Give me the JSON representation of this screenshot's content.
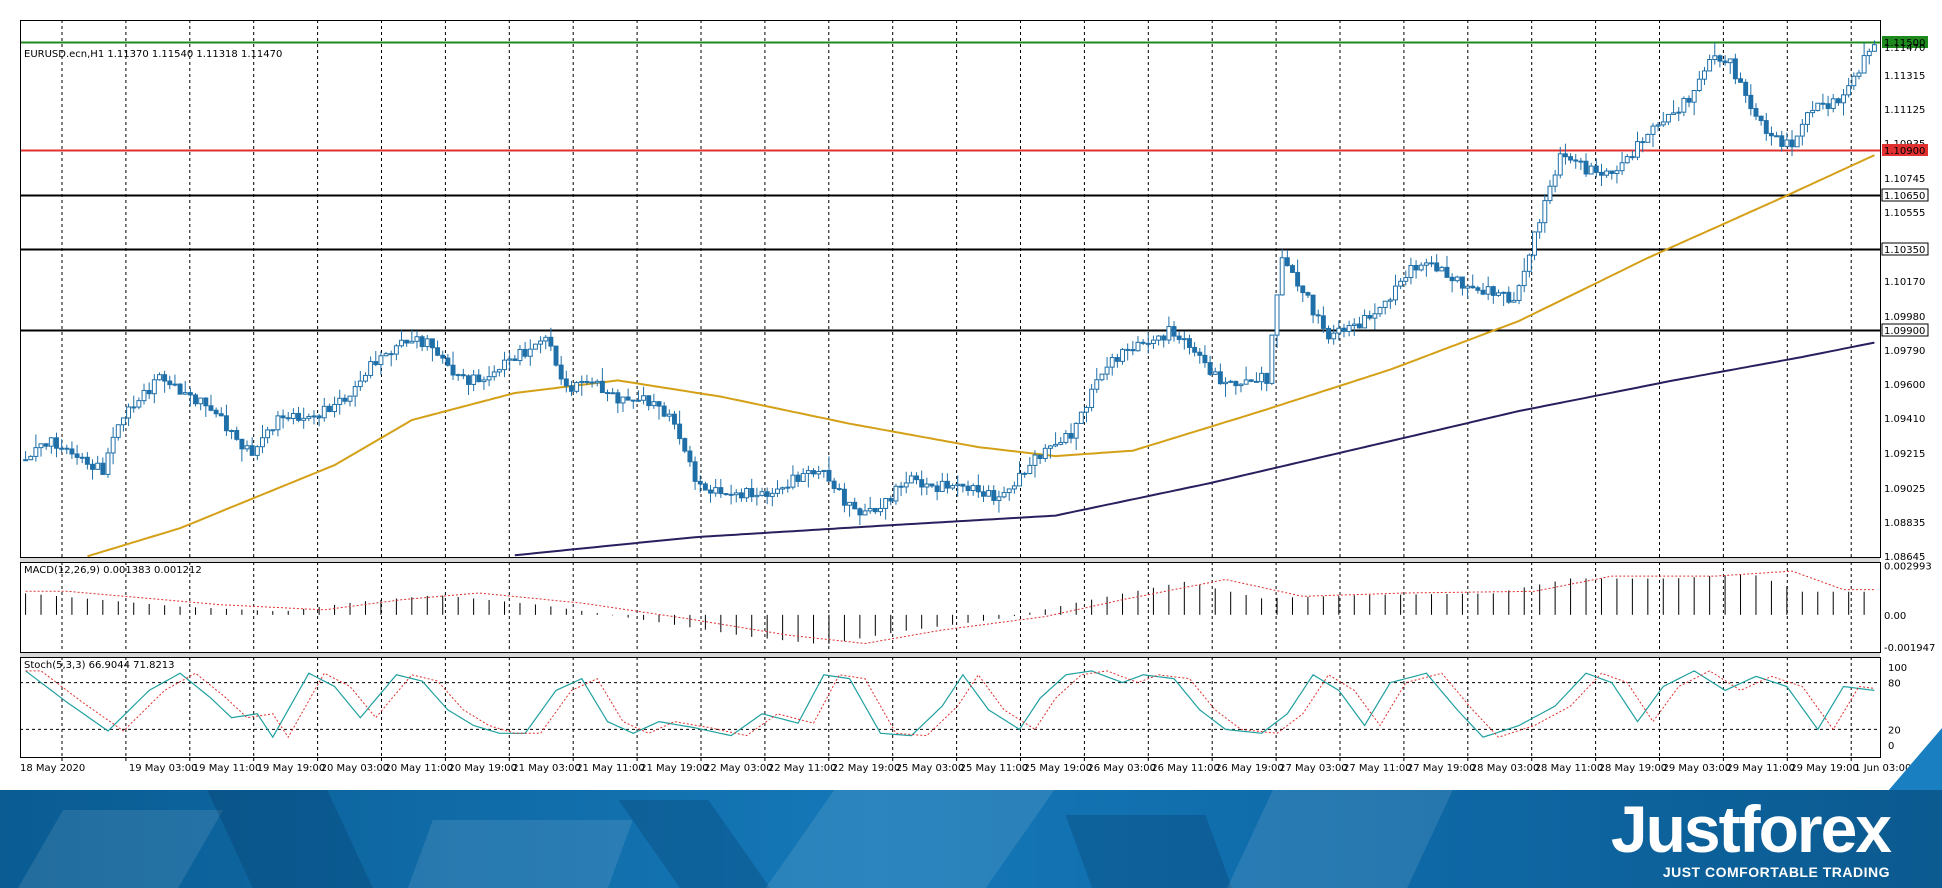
{
  "chart_data": {
    "type": "candlestick",
    "symbol_label": "EURUSD.ecn,H1",
    "ohlc_label": "1.11370 1.11540 1.11318 1.11470",
    "price_ticks": [
      "1.11500",
      "1.11470",
      "1.11315",
      "1.11125",
      "1.10935",
      "1.10900",
      "1.10745",
      "1.10650",
      "1.10555",
      "1.10350",
      "1.10170",
      "1.09980",
      "1.09900",
      "1.09790",
      "1.09600",
      "1.09410",
      "1.09215",
      "1.09025",
      "1.08835",
      "1.08645"
    ],
    "ylim": [
      1.0864,
      1.1162
    ],
    "x_labels": [
      "18 May 2020",
      "19 May 03:00",
      "19 May 11:00",
      "19 May 19:00",
      "20 May 03:00",
      "20 May 11:00",
      "20 May 19:00",
      "21 May 03:00",
      "21 May 11:00",
      "21 May 19:00",
      "22 May 03:00",
      "22 May 11:00",
      "22 May 19:00",
      "25 May 03:00",
      "25 May 11:00",
      "25 May 19:00",
      "26 May 03:00",
      "26 May 11:00",
      "26 May 19:00",
      "27 May 03:00",
      "27 May 11:00",
      "27 May 19:00",
      "28 May 03:00",
      "28 May 11:00",
      "28 May 19:00",
      "29 May 03:00",
      "29 May 11:00",
      "29 May 19:00",
      "1 Jun 03:00"
    ],
    "levels": [
      {
        "price": 1.115,
        "label": "1.11500",
        "color": "#1e8a1e"
      },
      {
        "price": 1.109,
        "label": "1.10900",
        "color": "#e03030"
      },
      {
        "price": 1.1065,
        "label": "1.10650",
        "color": "#000000"
      },
      {
        "price": 1.1035,
        "label": "1.10350",
        "color": "#000000"
      },
      {
        "price": 1.099,
        "label": "1.09900",
        "color": "#000000"
      }
    ],
    "keypoints": [
      [
        0,
        1.0918
      ],
      [
        4,
        1.0925
      ],
      [
        10,
        1.0923
      ],
      [
        15,
        1.0912
      ],
      [
        18,
        1.0935
      ],
      [
        23,
        1.0955
      ],
      [
        26,
        1.0968
      ],
      [
        32,
        1.095
      ],
      [
        38,
        1.0942
      ],
      [
        44,
        1.0922
      ],
      [
        50,
        1.094
      ],
      [
        56,
        1.0945
      ],
      [
        63,
        1.095
      ],
      [
        68,
        1.0975
      ],
      [
        73,
        1.0985
      ],
      [
        78,
        1.098
      ],
      [
        83,
        1.0968
      ],
      [
        90,
        1.0962
      ],
      [
        97,
        1.0978
      ],
      [
        101,
        1.099
      ],
      [
        105,
        1.0955
      ],
      [
        110,
        1.096
      ],
      [
        115,
        1.0955
      ],
      [
        120,
        1.095
      ],
      [
        126,
        1.0938
      ],
      [
        131,
        1.0905
      ],
      [
        137,
        1.0895
      ],
      [
        142,
        1.09
      ],
      [
        148,
        1.0905
      ],
      [
        155,
        1.091
      ],
      [
        162,
        1.089
      ],
      [
        166,
        1.0888
      ],
      [
        172,
        1.091
      ],
      [
        176,
        1.0905
      ],
      [
        182,
        1.09
      ],
      [
        189,
        1.09
      ],
      [
        193,
        1.0908
      ],
      [
        197,
        1.0918
      ],
      [
        203,
        1.0935
      ],
      [
        208,
        1.0962
      ],
      [
        213,
        1.0975
      ],
      [
        217,
        1.0985
      ],
      [
        222,
        1.099
      ],
      [
        226,
        1.0978
      ],
      [
        231,
        1.0965
      ],
      [
        236,
        1.0962
      ],
      [
        241,
        1.096
      ],
      [
        244,
        1.103
      ],
      [
        249,
        1.101
      ],
      [
        253,
        1.0985
      ],
      [
        258,
        1.099
      ],
      [
        263,
        1.1005
      ],
      [
        268,
        1.102
      ],
      [
        273,
        1.1025
      ],
      [
        278,
        1.102
      ],
      [
        283,
        1.101
      ],
      [
        289,
        1.1005
      ],
      [
        294,
        1.1055
      ],
      [
        298,
        1.1085
      ],
      [
        303,
        1.1078
      ],
      [
        308,
        1.108
      ],
      [
        313,
        1.109
      ],
      [
        318,
        1.1105
      ],
      [
        324,
        1.1125
      ],
      [
        327,
        1.114
      ],
      [
        331,
        1.1135
      ],
      [
        335,
        1.1115
      ],
      [
        339,
        1.11
      ],
      [
        343,
        1.109
      ],
      [
        347,
        1.1112
      ],
      [
        352,
        1.112
      ],
      [
        356,
        1.1135
      ],
      [
        359,
        1.1147
      ]
    ],
    "candles_count": 360,
    "ma50": [
      [
        0,
        1.0854
      ],
      [
        30,
        1.088
      ],
      [
        60,
        1.0915
      ],
      [
        75,
        1.094
      ],
      [
        95,
        1.0955
      ],
      [
        115,
        1.0962
      ],
      [
        135,
        1.0953
      ],
      [
        160,
        1.0938
      ],
      [
        185,
        1.0925
      ],
      [
        200,
        1.092
      ],
      [
        215,
        1.0923
      ],
      [
        240,
        1.0945
      ],
      [
        265,
        1.0968
      ],
      [
        290,
        1.0995
      ],
      [
        315,
        1.103
      ],
      [
        340,
        1.1062
      ],
      [
        359,
        1.1087
      ]
    ],
    "ma200": [
      [
        95,
        1.0865
      ],
      [
        130,
        1.0875
      ],
      [
        170,
        1.0882
      ],
      [
        200,
        1.0887
      ],
      [
        230,
        1.0905
      ],
      [
        260,
        1.0925
      ],
      [
        290,
        1.0945
      ],
      [
        320,
        1.0962
      ],
      [
        345,
        1.0975
      ],
      [
        359,
        1.0983
      ]
    ],
    "ma50_color": "#d4a017",
    "ma200_color": "#2a1f5e",
    "macd": {
      "label": "MACD(12,26,9) 0.001383 0.001212",
      "ticks": [
        "0.002993",
        "0.00",
        "-0.001947"
      ],
      "range": [
        -0.00225,
        0.0032
      ],
      "bars": [
        [
          0,
          0.0013
        ],
        [
          30,
          0.0005
        ],
        [
          50,
          0.0002
        ],
        [
          65,
          0.0008
        ],
        [
          80,
          0.0012
        ],
        [
          100,
          0.0006
        ],
        [
          120,
          -0.0003
        ],
        [
          140,
          -0.0013
        ],
        [
          155,
          -0.0018
        ],
        [
          170,
          -0.001
        ],
        [
          190,
          -0.0002
        ],
        [
          205,
          0.0008
        ],
        [
          225,
          0.002
        ],
        [
          240,
          0.001
        ],
        [
          260,
          0.0012
        ],
        [
          285,
          0.0013
        ],
        [
          300,
          0.0022
        ],
        [
          320,
          0.0022
        ],
        [
          335,
          0.0025
        ],
        [
          345,
          0.0014
        ],
        [
          359,
          0.0014
        ]
      ]
    },
    "stoch": {
      "label": "Stoch(5,3,3) 66.9044 71.8213",
      "ticks": [
        "100",
        "80",
        "20",
        "0"
      ],
      "levels": [
        80,
        20
      ],
      "k": [
        [
          0,
          95
        ],
        [
          8,
          55
        ],
        [
          16,
          18
        ],
        [
          24,
          70
        ],
        [
          30,
          92
        ],
        [
          36,
          60
        ],
        [
          40,
          35
        ],
        [
          45,
          40
        ],
        [
          48,
          10
        ],
        [
          55,
          92
        ],
        [
          60,
          75
        ],
        [
          65,
          35
        ],
        [
          72,
          90
        ],
        [
          77,
          82
        ],
        [
          82,
          45
        ],
        [
          87,
          25
        ],
        [
          92,
          15
        ],
        [
          97,
          15
        ],
        [
          103,
          70
        ],
        [
          108,
          85
        ],
        [
          113,
          30
        ],
        [
          118,
          15
        ],
        [
          123,
          30
        ],
        [
          130,
          22
        ],
        [
          137,
          12
        ],
        [
          143,
          40
        ],
        [
          150,
          28
        ],
        [
          155,
          90
        ],
        [
          160,
          85
        ],
        [
          166,
          15
        ],
        [
          172,
          12
        ],
        [
          178,
          50
        ],
        [
          182,
          90
        ],
        [
          187,
          45
        ],
        [
          193,
          20
        ],
        [
          197,
          60
        ],
        [
          202,
          90
        ],
        [
          207,
          95
        ],
        [
          213,
          80
        ],
        [
          217,
          90
        ],
        [
          223,
          85
        ],
        [
          228,
          45
        ],
        [
          233,
          20
        ],
        [
          240,
          15
        ],
        [
          245,
          40
        ],
        [
          250,
          90
        ],
        [
          255,
          70
        ],
        [
          260,
          25
        ],
        [
          265,
          80
        ],
        [
          272,
          92
        ],
        [
          278,
          45
        ],
        [
          283,
          10
        ],
        [
          290,
          25
        ],
        [
          297,
          50
        ],
        [
          303,
          92
        ],
        [
          308,
          80
        ],
        [
          313,
          30
        ],
        [
          318,
          75
        ],
        [
          324,
          95
        ],
        [
          330,
          70
        ],
        [
          336,
          88
        ],
        [
          342,
          75
        ],
        [
          348,
          20
        ],
        [
          353,
          75
        ],
        [
          359,
          70
        ]
      ],
      "k_color": "#20a0a0",
      "d_color": "#e03030"
    }
  },
  "brand": {
    "name": "Justforex",
    "tagline": "JUST COMFORTABLE TRADING"
  }
}
